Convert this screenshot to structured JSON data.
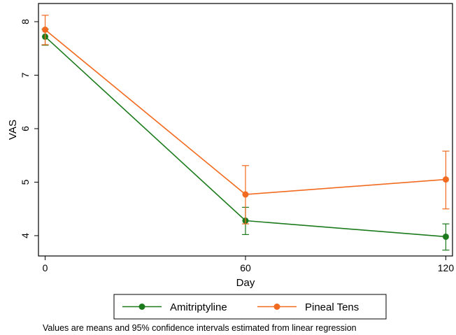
{
  "chart_data": {
    "type": "line",
    "xlabel": "Day",
    "ylabel": "VAS",
    "x": [
      0,
      60,
      120
    ],
    "xticks": [
      "0",
      "60",
      "120"
    ],
    "yticks": [
      "4",
      "5",
      "6",
      "7",
      "8"
    ],
    "xlim": [
      -2,
      122
    ],
    "ylim": [
      3.62,
      8.34
    ],
    "grid": false,
    "legend_position": "bottom",
    "note": "Values are means and 95% confidence intervals estimated from linear regression",
    "series": [
      {
        "name": "Amitriptyline",
        "color": "#1b7a1b",
        "values": [
          7.72,
          4.28,
          3.98
        ],
        "ci_low": [
          7.56,
          4.02,
          3.73
        ],
        "ci_high": [
          7.86,
          4.53,
          4.22
        ]
      },
      {
        "name": "Pineal Tens",
        "color": "#f26a1f",
        "values": [
          7.85,
          4.77,
          5.05
        ],
        "ci_low": [
          7.57,
          4.22,
          4.5
        ],
        "ci_high": [
          8.12,
          5.31,
          5.58
        ]
      }
    ]
  }
}
